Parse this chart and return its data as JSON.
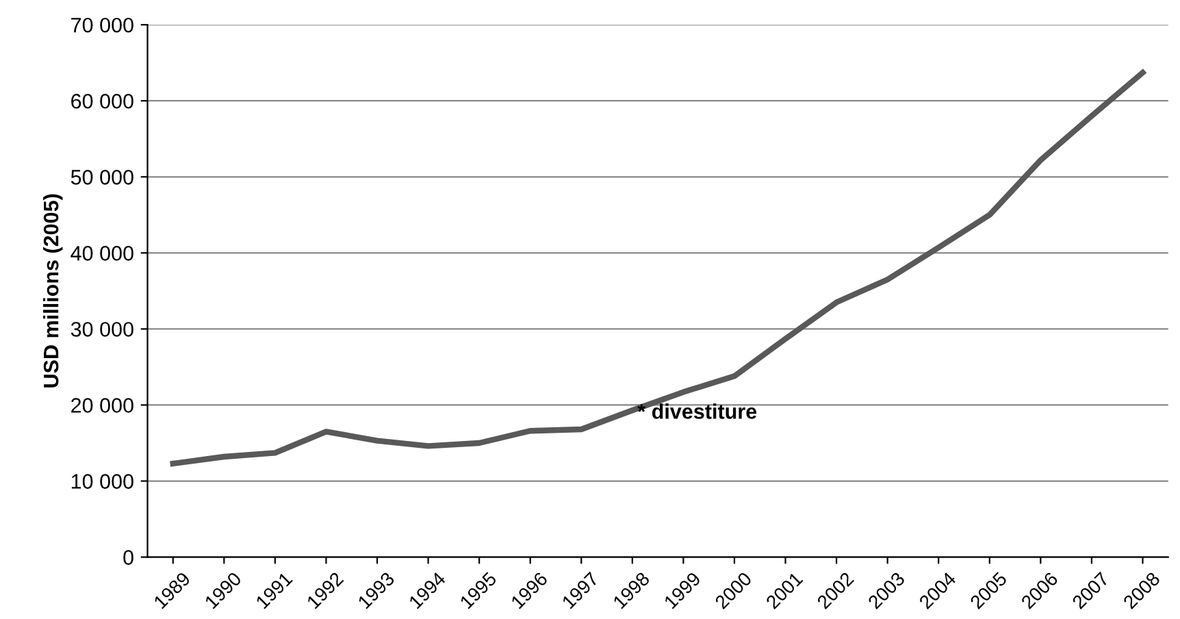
{
  "chart_data": {
    "type": "line",
    "ylabel": "USD millions (2005)",
    "categories": [
      "1989",
      "1990",
      "1991",
      "1992",
      "1993",
      "1994",
      "1995",
      "1996",
      "1997",
      "1998",
      "1999",
      "2000",
      "2001",
      "2002",
      "2003",
      "2004",
      "2005",
      "2006",
      "2007",
      "2008"
    ],
    "series": [
      {
        "color": "#595959",
        "values": [
          12300,
          13200,
          13700,
          16500,
          15300,
          14600,
          15000,
          16600,
          16800,
          19300,
          21700,
          23800,
          28700,
          33500,
          36500,
          40700,
          45000,
          52200,
          58000,
          63700
        ]
      }
    ],
    "ylim": [
      0,
      70000
    ],
    "yticks": [
      0,
      {
        "value": 10000,
        "label": "10 000"
      },
      {
        "value": 20000,
        "label": "20 000"
      },
      {
        "value": 30000,
        "label": "30 000"
      },
      {
        "value": 40000,
        "label": "40 000"
      },
      {
        "value": 50000,
        "label": "50 000"
      },
      {
        "value": 60000,
        "label": "60 000"
      },
      {
        "value": 70000,
        "label": "70 000"
      }
    ],
    "grid": "y",
    "marker": "none",
    "line_style": "solid",
    "annotations": [
      "* divestiture"
    ]
  }
}
